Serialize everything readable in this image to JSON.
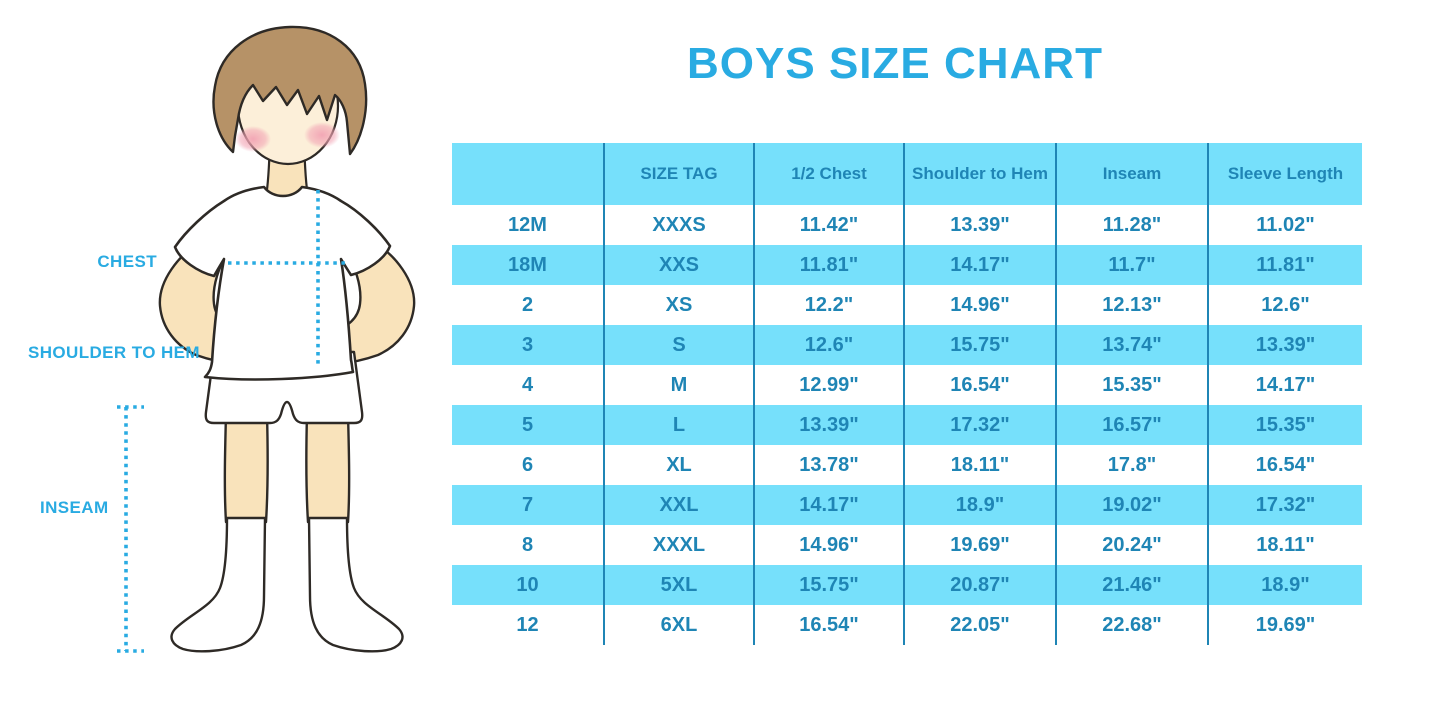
{
  "title": "BOYS SIZE CHART",
  "colors": {
    "accent_blue": "#29ABE2",
    "table_stripe": "#76E0FB",
    "table_text": "#1F85B5",
    "hair_brown": "#B69267",
    "skin": "#F9E3BB",
    "blush_pink": "#F2A4B4"
  },
  "figure": {
    "labels": {
      "chest": "CHEST",
      "shoulder_to_hem": "SHOULDER TO HEM",
      "inseam": "INSEAM"
    }
  },
  "chart_data": {
    "type": "table",
    "title": "BOYS SIZE CHART",
    "columns": [
      "",
      "SIZE TAG",
      "1/2 Chest",
      "Shoulder to Hem",
      "Inseam",
      "Sleeve Length"
    ],
    "rows": [
      [
        "12M",
        "XXXS",
        "11.42\"",
        "13.39\"",
        "11.28\"",
        "11.02\""
      ],
      [
        "18M",
        "XXS",
        "11.81\"",
        "14.17\"",
        "11.7\"",
        "11.81\""
      ],
      [
        "2",
        "XS",
        "12.2\"",
        "14.96\"",
        "12.13\"",
        "12.6\""
      ],
      [
        "3",
        "S",
        "12.6\"",
        "15.75\"",
        "13.74\"",
        "13.39\""
      ],
      [
        "4",
        "M",
        "12.99\"",
        "16.54\"",
        "15.35\"",
        "14.17\""
      ],
      [
        "5",
        "L",
        "13.39\"",
        "17.32\"",
        "16.57\"",
        "15.35\""
      ],
      [
        "6",
        "XL",
        "13.78\"",
        "18.11\"",
        "17.8\"",
        "16.54\""
      ],
      [
        "7",
        "XXL",
        "14.17\"",
        "18.9\"",
        "19.02\"",
        "17.32\""
      ],
      [
        "8",
        "XXXL",
        "14.96\"",
        "19.69\"",
        "20.24\"",
        "18.11\""
      ],
      [
        "10",
        "5XL",
        "15.75\"",
        "20.87\"",
        "21.46\"",
        "18.9\""
      ],
      [
        "12",
        "6XL",
        "16.54\"",
        "22.05\"",
        "22.68\"",
        "19.69\""
      ]
    ],
    "layout": {
      "header_background": "#76E0FB",
      "row_striping": "alternating white and #76E0FB starting with white",
      "column_dividers": "#1F85B5 vertical lines only, no outer border"
    }
  }
}
